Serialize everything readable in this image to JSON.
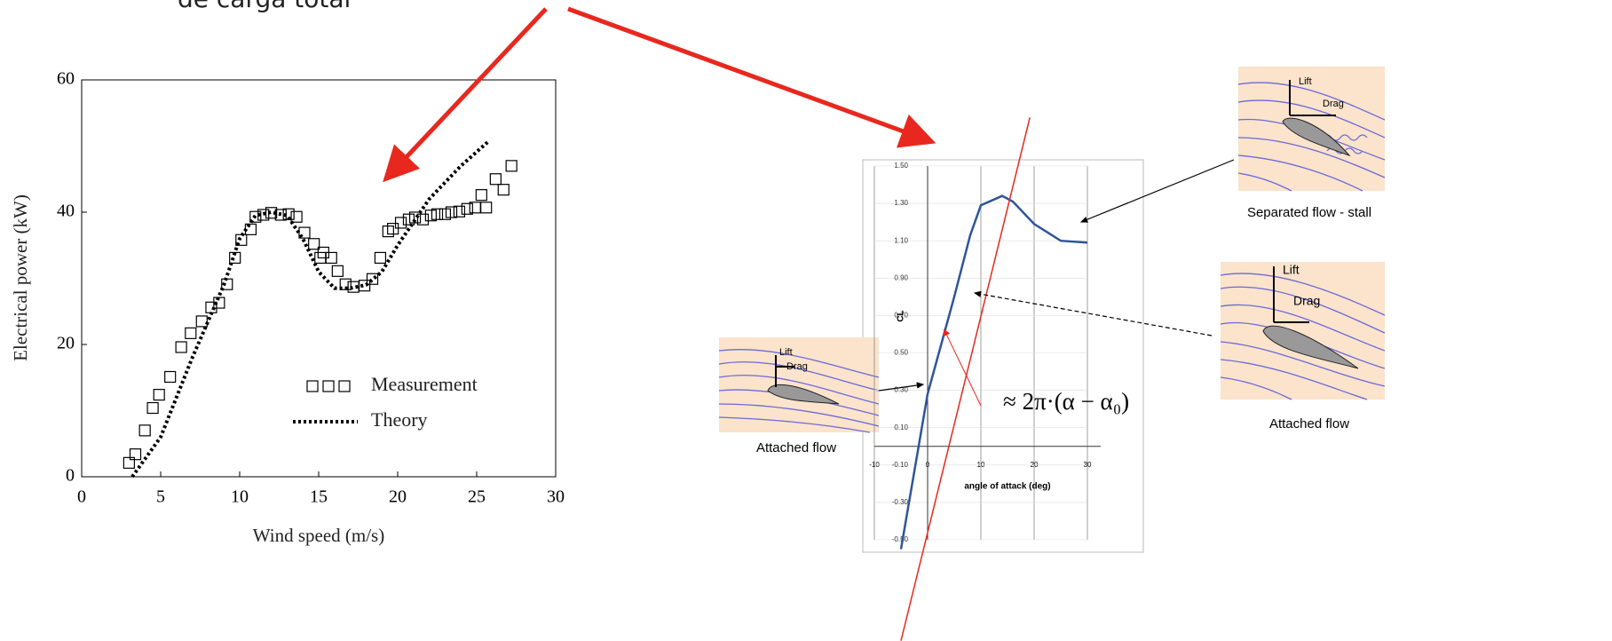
{
  "header_text": "de carga total",
  "chart_data": [
    {
      "type": "scatter",
      "xlabel": "Wind speed (m/s)",
      "ylabel": "Electrical power (kW)",
      "xlim": [
        0,
        30
      ],
      "xticks": [
        0,
        5,
        10,
        15,
        20,
        25,
        30
      ],
      "ylim": [
        0,
        60
      ],
      "yticks": [
        0,
        20,
        40,
        60
      ],
      "series": [
        {
          "name": "Measurement",
          "style": "square",
          "color": "#000000",
          "x": [
            3.0,
            3.4,
            4.0,
            4.5,
            4.9,
            5.6,
            6.3,
            6.9,
            7.6,
            8.2,
            8.7,
            9.2,
            9.7,
            10.1,
            10.7,
            11.0,
            11.5,
            12.0,
            12.6,
            13.1,
            13.6,
            14.1,
            14.7,
            15.1,
            15.3,
            15.8,
            16.2,
            16.7,
            17.2,
            17.9,
            18.4,
            18.9,
            19.4,
            19.7,
            20.2,
            20.7,
            21.1,
            21.6,
            22.1,
            22.5,
            23.0,
            23.4,
            23.9,
            24.4,
            24.9,
            25.3,
            25.6,
            26.2,
            26.7,
            27.2
          ],
          "values": [
            2.1,
            3.4,
            7.0,
            10.4,
            12.4,
            15.1,
            19.6,
            21.7,
            23.5,
            25.6,
            26.3,
            29.1,
            33.1,
            35.8,
            37.4,
            39.3,
            39.6,
            39.9,
            39.6,
            39.7,
            39.3,
            36.9,
            35.2,
            33.1,
            33.9,
            33.1,
            31.1,
            29.1,
            28.7,
            28.9,
            29.9,
            33.1,
            37.1,
            37.5,
            38.4,
            38.9,
            39.2,
            38.9,
            39.5,
            39.7,
            39.7,
            40.0,
            40.1,
            40.5,
            40.7,
            42.6,
            40.7,
            45.0,
            43.4,
            47.0
          ]
        },
        {
          "name": "Theory",
          "style": "dotted",
          "color": "#000000",
          "x": [
            3.2,
            5,
            7,
            9,
            10,
            11,
            12,
            13,
            14,
            15,
            16,
            17,
            18,
            19,
            20,
            22,
            24,
            25.7
          ],
          "values": [
            0,
            6,
            18,
            29,
            36,
            39.5,
            40,
            39.5,
            36,
            31,
            28.5,
            28.5,
            29,
            31,
            35,
            42,
            47,
            50.6
          ]
        }
      ]
    },
    {
      "type": "line",
      "xlabel": "angle of attack (deg)",
      "ylabel": "CL",
      "xlim": [
        -10,
        30
      ],
      "xticks": [
        -10,
        0,
        10,
        20,
        30
      ],
      "ylim": [
        -0.5,
        1.5
      ],
      "yticks": [
        {
          "value": -0.5,
          "label": "-0.50"
        },
        {
          "value": -0.3,
          "label": "-0.30"
        },
        {
          "value": -0.1,
          "label": "-0.10"
        },
        {
          "value": 0.1,
          "label": "0.10"
        },
        {
          "value": 0.3,
          "label": "0.30"
        },
        {
          "value": 0.5,
          "label": "0.50"
        },
        {
          "value": 0.7,
          "label": "0.70"
        },
        {
          "value": 0.9,
          "label": "0.90"
        },
        {
          "value": 1.1,
          "label": "1.10"
        },
        {
          "value": 1.3,
          "label": "1.30"
        },
        {
          "value": 1.5,
          "label": "1.50"
        }
      ],
      "grid": true,
      "annotation": "≈ 2π·(α − α₀)",
      "series": [
        {
          "color": "#2f5597",
          "x": [
            -5,
            0,
            5,
            8,
            10,
            14,
            16,
            20,
            25,
            30
          ],
          "values": [
            -0.55,
            0.28,
            0.8,
            1.13,
            1.29,
            1.34,
            1.31,
            1.19,
            1.1,
            1.09
          ]
        },
        {
          "color": "#e8281e",
          "x": [
            -5,
            19.2
          ],
          "values": [
            -1.04,
            1.76
          ]
        }
      ]
    }
  ],
  "insets": [
    {
      "lift": "Lift",
      "drag": "Drag",
      "caption": "Attached flow"
    },
    {
      "lift": "Lift",
      "drag": "Drag",
      "caption": "Separated flow - stall"
    },
    {
      "lift": "Lift",
      "drag": "Drag",
      "caption": "Attached flow"
    }
  ]
}
